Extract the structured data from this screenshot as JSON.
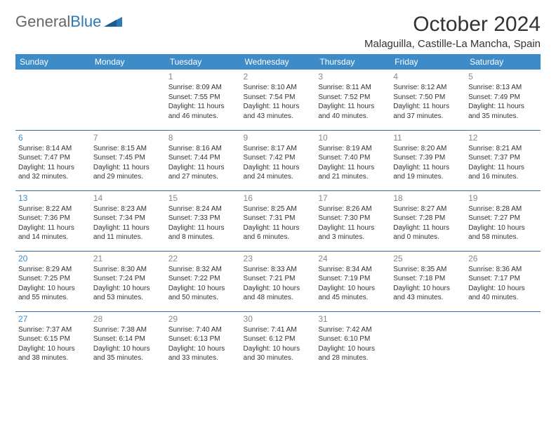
{
  "logo": {
    "text1": "General",
    "text2": "Blue"
  },
  "title": "October 2024",
  "location": "Malaguilla, Castille-La Mancha, Spain",
  "colors": {
    "header_bg": "#3d8bc7",
    "header_text": "#ffffff",
    "daynum": "#3d8bc7",
    "daynum_grey": "#888888",
    "cell_border": "#3d6b9a",
    "body_text": "#333333"
  },
  "weekdays": [
    "Sunday",
    "Monday",
    "Tuesday",
    "Wednesday",
    "Thursday",
    "Friday",
    "Saturday"
  ],
  "weeks": [
    [
      {
        "n": "",
        "grey": false,
        "sr": "",
        "ss": "",
        "dl": ""
      },
      {
        "n": "",
        "grey": false,
        "sr": "",
        "ss": "",
        "dl": ""
      },
      {
        "n": "1",
        "grey": true,
        "sr": "Sunrise: 8:09 AM",
        "ss": "Sunset: 7:55 PM",
        "dl": "Daylight: 11 hours and 46 minutes."
      },
      {
        "n": "2",
        "grey": true,
        "sr": "Sunrise: 8:10 AM",
        "ss": "Sunset: 7:54 PM",
        "dl": "Daylight: 11 hours and 43 minutes."
      },
      {
        "n": "3",
        "grey": true,
        "sr": "Sunrise: 8:11 AM",
        "ss": "Sunset: 7:52 PM",
        "dl": "Daylight: 11 hours and 40 minutes."
      },
      {
        "n": "4",
        "grey": true,
        "sr": "Sunrise: 8:12 AM",
        "ss": "Sunset: 7:50 PM",
        "dl": "Daylight: 11 hours and 37 minutes."
      },
      {
        "n": "5",
        "grey": true,
        "sr": "Sunrise: 8:13 AM",
        "ss": "Sunset: 7:49 PM",
        "dl": "Daylight: 11 hours and 35 minutes."
      }
    ],
    [
      {
        "n": "6",
        "grey": false,
        "sr": "Sunrise: 8:14 AM",
        "ss": "Sunset: 7:47 PM",
        "dl": "Daylight: 11 hours and 32 minutes."
      },
      {
        "n": "7",
        "grey": true,
        "sr": "Sunrise: 8:15 AM",
        "ss": "Sunset: 7:45 PM",
        "dl": "Daylight: 11 hours and 29 minutes."
      },
      {
        "n": "8",
        "grey": true,
        "sr": "Sunrise: 8:16 AM",
        "ss": "Sunset: 7:44 PM",
        "dl": "Daylight: 11 hours and 27 minutes."
      },
      {
        "n": "9",
        "grey": true,
        "sr": "Sunrise: 8:17 AM",
        "ss": "Sunset: 7:42 PM",
        "dl": "Daylight: 11 hours and 24 minutes."
      },
      {
        "n": "10",
        "grey": true,
        "sr": "Sunrise: 8:19 AM",
        "ss": "Sunset: 7:40 PM",
        "dl": "Daylight: 11 hours and 21 minutes."
      },
      {
        "n": "11",
        "grey": true,
        "sr": "Sunrise: 8:20 AM",
        "ss": "Sunset: 7:39 PM",
        "dl": "Daylight: 11 hours and 19 minutes."
      },
      {
        "n": "12",
        "grey": true,
        "sr": "Sunrise: 8:21 AM",
        "ss": "Sunset: 7:37 PM",
        "dl": "Daylight: 11 hours and 16 minutes."
      }
    ],
    [
      {
        "n": "13",
        "grey": false,
        "sr": "Sunrise: 8:22 AM",
        "ss": "Sunset: 7:36 PM",
        "dl": "Daylight: 11 hours and 14 minutes."
      },
      {
        "n": "14",
        "grey": true,
        "sr": "Sunrise: 8:23 AM",
        "ss": "Sunset: 7:34 PM",
        "dl": "Daylight: 11 hours and 11 minutes."
      },
      {
        "n": "15",
        "grey": true,
        "sr": "Sunrise: 8:24 AM",
        "ss": "Sunset: 7:33 PM",
        "dl": "Daylight: 11 hours and 8 minutes."
      },
      {
        "n": "16",
        "grey": true,
        "sr": "Sunrise: 8:25 AM",
        "ss": "Sunset: 7:31 PM",
        "dl": "Daylight: 11 hours and 6 minutes."
      },
      {
        "n": "17",
        "grey": true,
        "sr": "Sunrise: 8:26 AM",
        "ss": "Sunset: 7:30 PM",
        "dl": "Daylight: 11 hours and 3 minutes."
      },
      {
        "n": "18",
        "grey": true,
        "sr": "Sunrise: 8:27 AM",
        "ss": "Sunset: 7:28 PM",
        "dl": "Daylight: 11 hours and 0 minutes."
      },
      {
        "n": "19",
        "grey": true,
        "sr": "Sunrise: 8:28 AM",
        "ss": "Sunset: 7:27 PM",
        "dl": "Daylight: 10 hours and 58 minutes."
      }
    ],
    [
      {
        "n": "20",
        "grey": false,
        "sr": "Sunrise: 8:29 AM",
        "ss": "Sunset: 7:25 PM",
        "dl": "Daylight: 10 hours and 55 minutes."
      },
      {
        "n": "21",
        "grey": true,
        "sr": "Sunrise: 8:30 AM",
        "ss": "Sunset: 7:24 PM",
        "dl": "Daylight: 10 hours and 53 minutes."
      },
      {
        "n": "22",
        "grey": true,
        "sr": "Sunrise: 8:32 AM",
        "ss": "Sunset: 7:22 PM",
        "dl": "Daylight: 10 hours and 50 minutes."
      },
      {
        "n": "23",
        "grey": true,
        "sr": "Sunrise: 8:33 AM",
        "ss": "Sunset: 7:21 PM",
        "dl": "Daylight: 10 hours and 48 minutes."
      },
      {
        "n": "24",
        "grey": true,
        "sr": "Sunrise: 8:34 AM",
        "ss": "Sunset: 7:19 PM",
        "dl": "Daylight: 10 hours and 45 minutes."
      },
      {
        "n": "25",
        "grey": true,
        "sr": "Sunrise: 8:35 AM",
        "ss": "Sunset: 7:18 PM",
        "dl": "Daylight: 10 hours and 43 minutes."
      },
      {
        "n": "26",
        "grey": true,
        "sr": "Sunrise: 8:36 AM",
        "ss": "Sunset: 7:17 PM",
        "dl": "Daylight: 10 hours and 40 minutes."
      }
    ],
    [
      {
        "n": "27",
        "grey": false,
        "sr": "Sunrise: 7:37 AM",
        "ss": "Sunset: 6:15 PM",
        "dl": "Daylight: 10 hours and 38 minutes."
      },
      {
        "n": "28",
        "grey": true,
        "sr": "Sunrise: 7:38 AM",
        "ss": "Sunset: 6:14 PM",
        "dl": "Daylight: 10 hours and 35 minutes."
      },
      {
        "n": "29",
        "grey": true,
        "sr": "Sunrise: 7:40 AM",
        "ss": "Sunset: 6:13 PM",
        "dl": "Daylight: 10 hours and 33 minutes."
      },
      {
        "n": "30",
        "grey": true,
        "sr": "Sunrise: 7:41 AM",
        "ss": "Sunset: 6:12 PM",
        "dl": "Daylight: 10 hours and 30 minutes."
      },
      {
        "n": "31",
        "grey": true,
        "sr": "Sunrise: 7:42 AM",
        "ss": "Sunset: 6:10 PM",
        "dl": "Daylight: 10 hours and 28 minutes."
      },
      {
        "n": "",
        "grey": false,
        "sr": "",
        "ss": "",
        "dl": ""
      },
      {
        "n": "",
        "grey": false,
        "sr": "",
        "ss": "",
        "dl": ""
      }
    ]
  ]
}
